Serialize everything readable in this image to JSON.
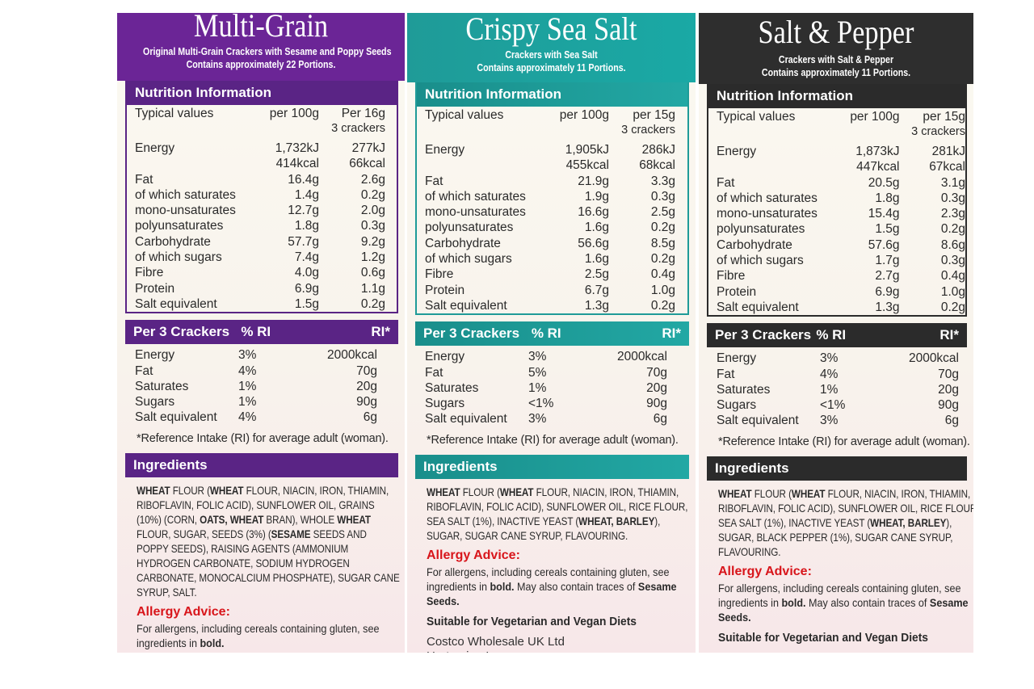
{
  "panels": [
    {
      "title": "Multi-Grain",
      "subtitle1": "Original Multi-Grain Crackers with Sesame and Poppy Seeds",
      "subtitle2": "Contains approximately 22 Portions.",
      "nutrition_header": "Nutrition Information",
      "col_typical": "Typical values",
      "col_per100": "per 100g",
      "col_portion1": "Per 16g",
      "col_portion2": "3 crackers",
      "nutrients": [
        {
          "name": "Energy",
          "per100": "1,732kJ",
          "portion": "277kJ"
        },
        {
          "name": "",
          "per100": "414kcal",
          "portion": "66kcal"
        },
        {
          "name": "Fat",
          "per100": "16.4g",
          "portion": "2.6g"
        },
        {
          "name": "of which saturates",
          "per100": "1.4g",
          "portion": "0.2g"
        },
        {
          "name": "mono-unsaturates",
          "per100": "12.7g",
          "portion": "2.0g"
        },
        {
          "name": "polyunsaturates",
          "per100": "1.8g",
          "portion": "0.3g"
        },
        {
          "name": "Carbohydrate",
          "per100": "57.7g",
          "portion": "9.2g"
        },
        {
          "name": "of which sugars",
          "per100": "7.4g",
          "portion": "1.2g"
        },
        {
          "name": "Fibre",
          "per100": "4.0g",
          "portion": "0.6g"
        },
        {
          "name": "Protein",
          "per100": "6.9g",
          "portion": "1.1g"
        },
        {
          "name": "Salt equivalent",
          "per100": "1.5g",
          "portion": "0.2g"
        }
      ],
      "ri_header": "Per 3 Crackers",
      "ri_pct_header": "% RI",
      "ri_col_header": "RI*",
      "ri_rows": [
        {
          "name": "Energy",
          "pct": "3%",
          "ri": "2000kcal"
        },
        {
          "name": "Fat",
          "pct": "4%",
          "ri": "70g"
        },
        {
          "name": "Saturates",
          "pct": "1%",
          "ri": "20g"
        },
        {
          "name": "Sugars",
          "pct": "1%",
          "ri": "90g"
        },
        {
          "name": "Salt equivalent",
          "pct": "4%",
          "ri": "6g"
        }
      ],
      "ri_note": "*Reference Intake (RI) for average adult (woman).",
      "ingredients_header": "Ingredients",
      "ingredients": [
        {
          "t": "WHEAT",
          "b": true
        },
        {
          "t": " FLOUR (",
          "b": false
        },
        {
          "t": "WHEAT",
          "b": true
        },
        {
          "t": " FLOUR, NIACIN, IRON, THIAMIN, RIBOFLAVIN, FOLIC ACID), SUNFLOWER OIL, GRAINS (10%) (CORN, ",
          "b": false
        },
        {
          "t": "OATS, WHEAT",
          "b": true
        },
        {
          "t": " BRAN), WHOLE ",
          "b": false
        },
        {
          "t": "WHEAT",
          "b": true
        },
        {
          "t": " FLOUR, SUGAR, SEEDS (3%) (",
          "b": false
        },
        {
          "t": "SESAME",
          "b": true
        },
        {
          "t": " SEEDS AND POPPY SEEDS), RAISING AGENTS (AMMONIUM HYDROGEN CARBONATE, SODIUM HYDROGEN CARBONATE, MONOCALCIUM PHOSPHATE), SUGAR CANE SYRUP, SALT.",
          "b": false
        }
      ],
      "allergy_header": "Allergy Advice:",
      "allergy": [
        {
          "t": "For allergens, including cereals containing gluten, see ingredients in ",
          "b": false
        },
        {
          "t": "bold.",
          "b": true
        }
      ],
      "veg": "",
      "address": [
        "",
        ""
      ]
    },
    {
      "title": "Crispy Sea Salt",
      "subtitle1": "Crackers with Sea Salt",
      "subtitle2": "Contains approximately 11 Portions.",
      "nutrition_header": "Nutrition Information",
      "col_typical": "Typical values",
      "col_per100": "per 100g",
      "col_portion1": "per 15g",
      "col_portion2": "3 crackers",
      "nutrients": [
        {
          "name": "Energy",
          "per100": "1,905kJ",
          "portion": "286kJ"
        },
        {
          "name": "",
          "per100": "455kcal",
          "portion": "68kcal"
        },
        {
          "name": "Fat",
          "per100": "21.9g",
          "portion": "3.3g"
        },
        {
          "name": "of which saturates",
          "per100": "1.9g",
          "portion": "0.3g"
        },
        {
          "name": "mono-unsaturates",
          "per100": "16.6g",
          "portion": "2.5g"
        },
        {
          "name": "polyunsaturates",
          "per100": "1.6g",
          "portion": "0.2g"
        },
        {
          "name": "Carbohydrate",
          "per100": "56.6g",
          "portion": "8.5g"
        },
        {
          "name": "of which sugars",
          "per100": "1.6g",
          "portion": "0.2g"
        },
        {
          "name": "Fibre",
          "per100": "2.5g",
          "portion": "0.4g"
        },
        {
          "name": "Protein",
          "per100": "6.7g",
          "portion": "1.0g"
        },
        {
          "name": "Salt equivalent",
          "per100": "1.3g",
          "portion": "0.2g"
        }
      ],
      "ri_header": "Per 3 Crackers",
      "ri_pct_header": "% RI",
      "ri_col_header": "RI*",
      "ri_rows": [
        {
          "name": "Energy",
          "pct": "3%",
          "ri": "2000kcal"
        },
        {
          "name": "Fat",
          "pct": "5%",
          "ri": "70g"
        },
        {
          "name": "Saturates",
          "pct": "1%",
          "ri": "20g"
        },
        {
          "name": "Sugars",
          "pct": "<1%",
          "ri": "90g"
        },
        {
          "name": "Salt equivalent",
          "pct": "3%",
          "ri": "6g"
        }
      ],
      "ri_note": "*Reference Intake (RI) for average adult (woman).",
      "ingredients_header": "Ingredients",
      "ingredients": [
        {
          "t": "WHEAT",
          "b": true
        },
        {
          "t": " FLOUR (",
          "b": false
        },
        {
          "t": "WHEAT",
          "b": true
        },
        {
          "t": " FLOUR, NIACIN, IRON, THIAMIN, RIBOFLAVIN, FOLIC ACID), SUNFLOWER OIL, RICE FLOUR, SEA SALT (1%), INACTIVE YEAST (",
          "b": false
        },
        {
          "t": "WHEAT, BARLEY",
          "b": true
        },
        {
          "t": "), SUGAR, SUGAR CANE SYRUP, FLAVOURING.",
          "b": false
        }
      ],
      "allergy_header": "Allergy Advice:",
      "allergy": [
        {
          "t": "For allergens, including cereals containing gluten, see ingredients in ",
          "b": false
        },
        {
          "t": "bold.",
          "b": true
        },
        {
          "t": " May also contain traces of ",
          "b": false
        },
        {
          "t": "Sesame Seeds.",
          "b": true
        }
      ],
      "veg": "Suitable for Vegetarian and Vegan Diets",
      "address": [
        "Costco Wholesale UK Ltd",
        "Hartspring Lane"
      ]
    },
    {
      "title": "Salt & Pepper",
      "subtitle1": "Crackers with Salt & Pepper",
      "subtitle2": "Contains approximately 11 Portions.",
      "nutrition_header": "Nutrition Information",
      "col_typical": "Typical values",
      "col_per100": "per 100g",
      "col_portion1": "per 15g",
      "col_portion2": "3 crackers",
      "nutrients": [
        {
          "name": "Energy",
          "per100": "1,873kJ",
          "portion": "281kJ"
        },
        {
          "name": "",
          "per100": "447kcal",
          "portion": "67kcal"
        },
        {
          "name": "Fat",
          "per100": "20.5g",
          "portion": "3.1g"
        },
        {
          "name": "of which saturates",
          "per100": "1.8g",
          "portion": "0.3g"
        },
        {
          "name": "mono-unsaturates",
          "per100": "15.4g",
          "portion": "2.3g"
        },
        {
          "name": "polyunsaturates",
          "per100": "1.5g",
          "portion": "0.2g"
        },
        {
          "name": "Carbohydrate",
          "per100": "57.6g",
          "portion": "8.6g"
        },
        {
          "name": "of which sugars",
          "per100": "1.7g",
          "portion": "0.3g"
        },
        {
          "name": "Fibre",
          "per100": "2.7g",
          "portion": "0.4g"
        },
        {
          "name": "Protein",
          "per100": "6.9g",
          "portion": "1.0g"
        },
        {
          "name": "Salt equivalent",
          "per100": "1.3g",
          "portion": "0.2g"
        }
      ],
      "ri_header": "Per 3 Crackers",
      "ri_pct_header": "% RI",
      "ri_col_header": "RI*",
      "ri_rows": [
        {
          "name": "Energy",
          "pct": "3%",
          "ri": "2000kcal"
        },
        {
          "name": "Fat",
          "pct": "4%",
          "ri": "70g"
        },
        {
          "name": "Saturates",
          "pct": "1%",
          "ri": "20g"
        },
        {
          "name": "Sugars",
          "pct": "<1%",
          "ri": "90g"
        },
        {
          "name": "Salt equivalent",
          "pct": "3%",
          "ri": "6g"
        }
      ],
      "ri_note": "*Reference Intake (RI) for average adult (woman).",
      "ingredients_header": "Ingredients",
      "ingredients": [
        {
          "t": "WHEAT",
          "b": true
        },
        {
          "t": " FLOUR (",
          "b": false
        },
        {
          "t": "WHEAT",
          "b": true
        },
        {
          "t": " FLOUR, NIACIN, IRON, THIAMIN, RIBOFLAVIN, FOLIC ACID), SUNFLOWER OIL, RICE FLOUR, SEA SALT (1%), INACTIVE YEAST (",
          "b": false
        },
        {
          "t": "WHEAT, BARLEY",
          "b": true
        },
        {
          "t": "), SUGAR, BLACK PEPPER (1%), SUGAR CANE SYRUP, FLAVOURING.",
          "b": false
        }
      ],
      "allergy_header": "Allergy Advice:",
      "allergy": [
        {
          "t": "For allergens, including cereals containing gluten, see ingredients in ",
          "b": false
        },
        {
          "t": "bold.",
          "b": true
        },
        {
          "t": " May also contain traces of ",
          "b": false
        },
        {
          "t": "Sesame Seeds.",
          "b": true
        }
      ],
      "veg": "Suitable for Vegetarian and Vegan Diets",
      "address": [
        "",
        ""
      ]
    }
  ]
}
